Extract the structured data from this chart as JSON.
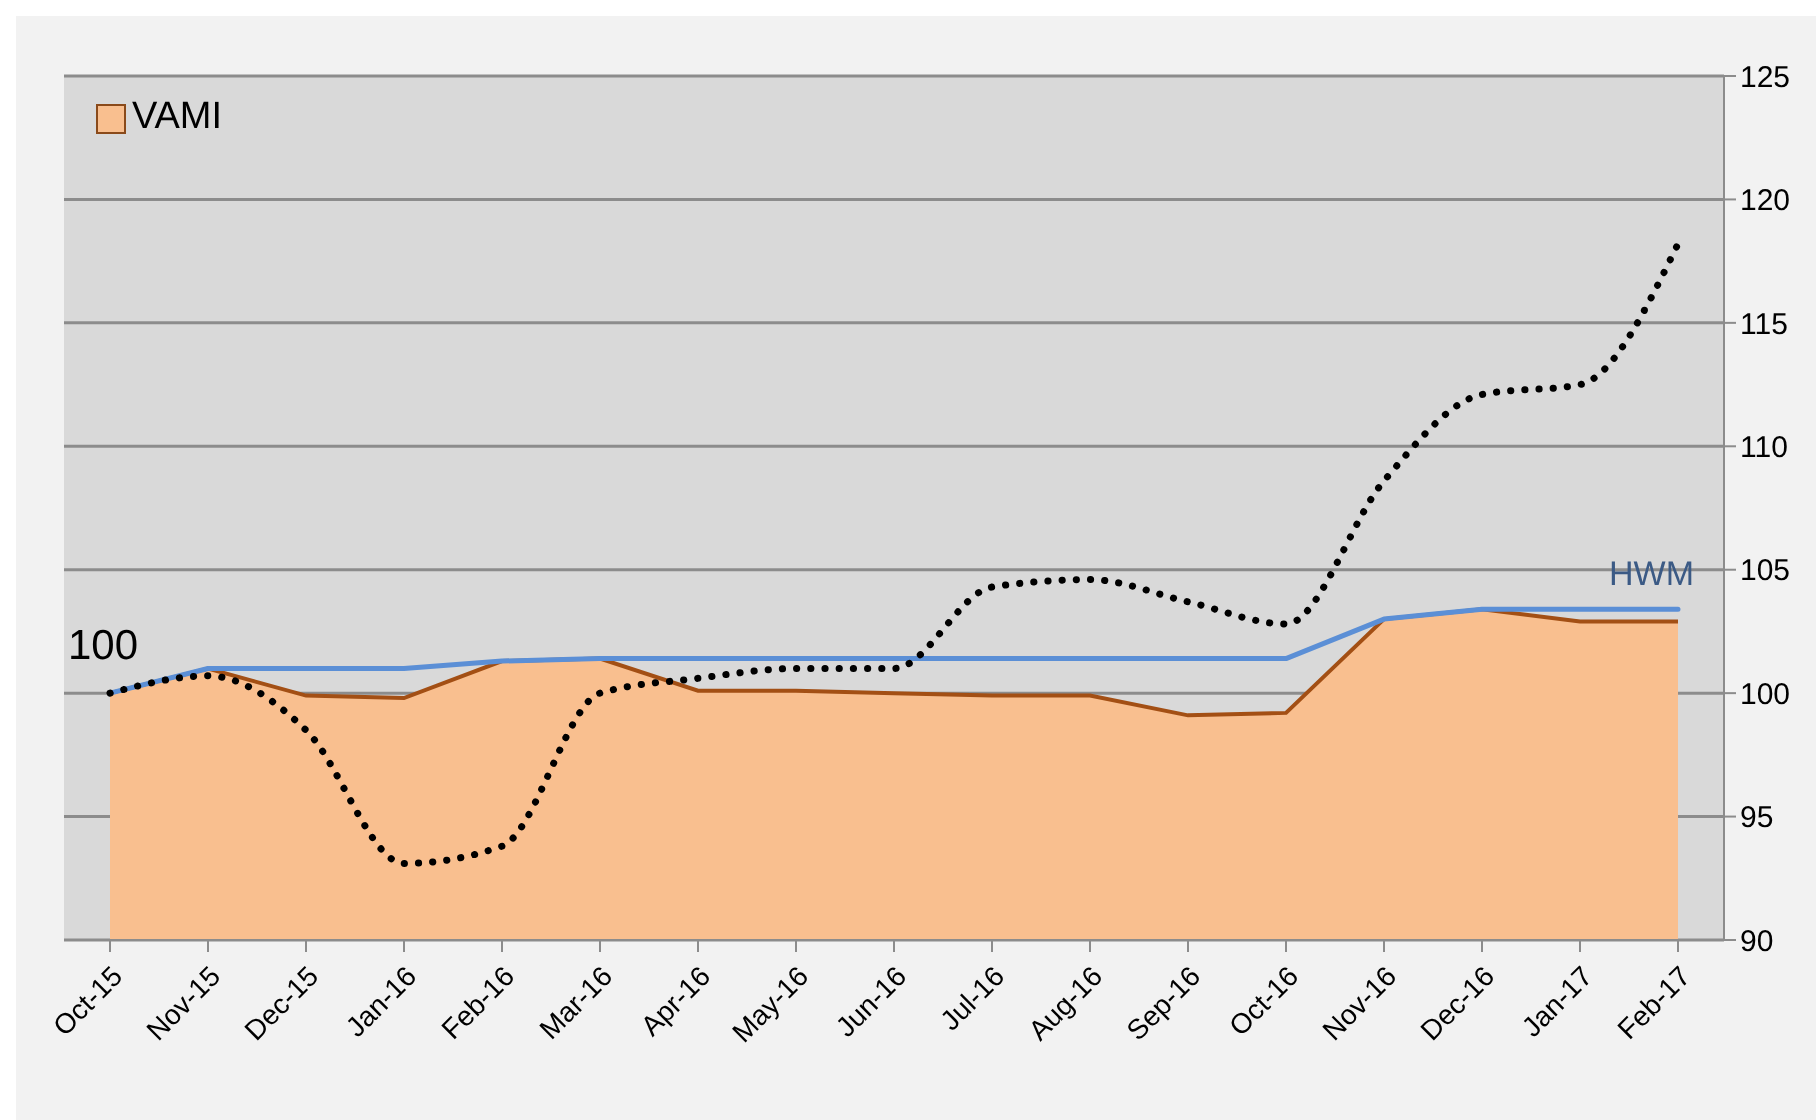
{
  "chart_data": {
    "type": "line",
    "categories": [
      "Oct-15",
      "Nov-15",
      "Dec-15",
      "Jan-16",
      "Feb-16",
      "Mar-16",
      "Apr-16",
      "May-16",
      "Jun-16",
      "Jul-16",
      "Aug-16",
      "Sep-16",
      "Oct-16",
      "Nov-16",
      "Dec-16",
      "Jan-17",
      "Feb-17"
    ],
    "series": [
      {
        "name": "VAMI",
        "type": "area",
        "color": "#f9bf8f",
        "values": [
          100,
          101,
          99.9,
          99.8,
          101.3,
          101.4,
          100.1,
          100.1,
          100,
          99.9,
          99.9,
          99.1,
          99.2,
          103,
          103.4,
          102.9,
          102.9
        ]
      },
      {
        "name": "HWM",
        "color": "#5b8fd6",
        "line_style": "solid",
        "values": [
          100,
          101,
          101,
          101,
          101.3,
          101.4,
          101.4,
          101.4,
          101.4,
          101.4,
          101.4,
          101.4,
          101.4,
          103,
          103.4,
          103.4,
          103.4
        ]
      },
      {
        "color": "#000000",
        "line_style": "dotted",
        "values": [
          100,
          100.7,
          98.5,
          93.1,
          93.8,
          100,
          100.6,
          101,
          101,
          104.3,
          104.6,
          103.7,
          102.8,
          108.6,
          112.1,
          112.5,
          118.2
        ]
      }
    ],
    "ylim": [
      90,
      125
    ],
    "yticks": [
      90,
      95,
      100,
      105,
      110,
      115,
      120,
      125
    ],
    "grid": "y",
    "legend": "top left",
    "marker": "none",
    "annotations": [
      {
        "text": "100",
        "x": "Oct-15",
        "y": 100
      }
    ]
  }
}
